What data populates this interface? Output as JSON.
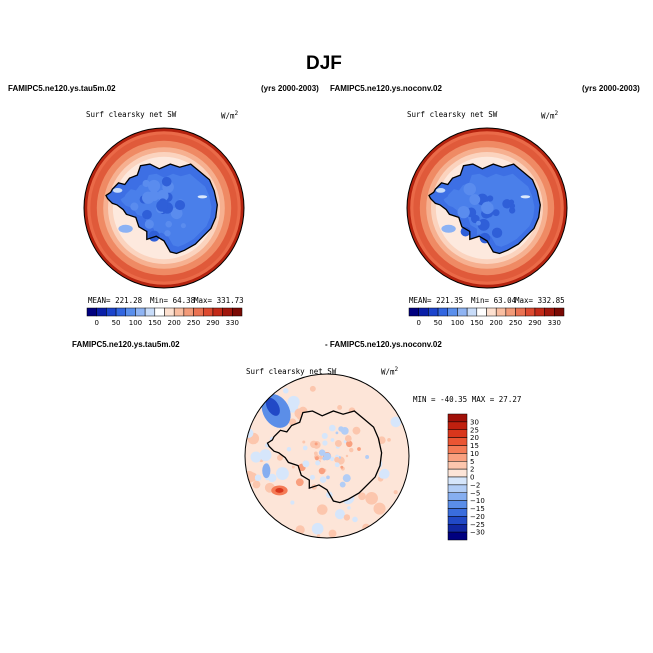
{
  "figure": {
    "title": "DJF",
    "case_left": "FAMIPC5.ne120.ys.tau5m.02",
    "years_left": "(yrs 2000-2003)",
    "case_right": "FAMIPC5.ne120.ys.noconv.02",
    "years_right": "(yrs 2000-2003)",
    "diff_left": "FAMIPC5.ne120.ys.tau5m.02",
    "diff_right": "- FAMIPC5.ne120.ys.noconv.02"
  },
  "chart_data": [
    {
      "type": "heatmap",
      "projection": "south polar stereographic",
      "variable": "Surf clearsky net SW",
      "units": "W/m",
      "units_exp": "2",
      "stats": {
        "mean": "MEAN= 221.28",
        "min": "Min=  64.38",
        "max": "Max= 331.73"
      },
      "mean": 221.28,
      "min": 64.38,
      "max": 331.73,
      "colorbar_ticks": [
        "0",
        "50",
        "100",
        "150",
        "200",
        "250",
        "290",
        "330"
      ],
      "colorbar_colors": [
        "#00007f",
        "#0a1fa8",
        "#1c44cc",
        "#3266e0",
        "#5a8fec",
        "#8fb4f3",
        "#c8dcf9",
        "#ffffff",
        "#fde0cf",
        "#f9bea1",
        "#f29a78",
        "#ea7252",
        "#dd4a30",
        "#c32a18",
        "#a0160c",
        "#7a0a04"
      ]
    },
    {
      "type": "heatmap",
      "projection": "south polar stereographic",
      "variable": "Surf clearsky net SW",
      "units": "W/m",
      "units_exp": "2",
      "stats": {
        "mean": "MEAN= 221.35",
        "min": "Min=  63.04",
        "max": "Max= 332.85"
      },
      "mean": 221.35,
      "min": 63.04,
      "max": 332.85,
      "colorbar_ticks": [
        "0",
        "50",
        "100",
        "150",
        "200",
        "250",
        "290",
        "330"
      ],
      "colorbar_colors": [
        "#00007f",
        "#0a1fa8",
        "#1c44cc",
        "#3266e0",
        "#5a8fec",
        "#8fb4f3",
        "#c8dcf9",
        "#ffffff",
        "#fde0cf",
        "#f9bea1",
        "#f29a78",
        "#ea7252",
        "#dd4a30",
        "#c32a18",
        "#a0160c",
        "#7a0a04"
      ]
    },
    {
      "type": "heatmap",
      "projection": "south polar stereographic",
      "variable": "Surf clearsky net SW",
      "units": "W/m",
      "units_exp": "2",
      "stats": {
        "minmax": "MIN = -40.35 MAX =  27.27"
      },
      "min": -40.35,
      "max": 27.27,
      "colorbar_ticks": [
        "30",
        "25",
        "20",
        "15",
        "10",
        "5",
        "2",
        "0",
        "−2",
        "−5",
        "−10",
        "−15",
        "−20",
        "−25",
        "−30"
      ],
      "colorbar_colors": [
        "#a01008",
        "#c0200f",
        "#d9361c",
        "#ea5533",
        "#f47b56",
        "#f9a07f",
        "#fcc6ad",
        "#fde5d8",
        "#d6e6fb",
        "#b2cdf6",
        "#86aef0",
        "#5b8ee8",
        "#3a6ddd",
        "#2149c6",
        "#1127a2",
        "#00007f"
      ]
    }
  ]
}
